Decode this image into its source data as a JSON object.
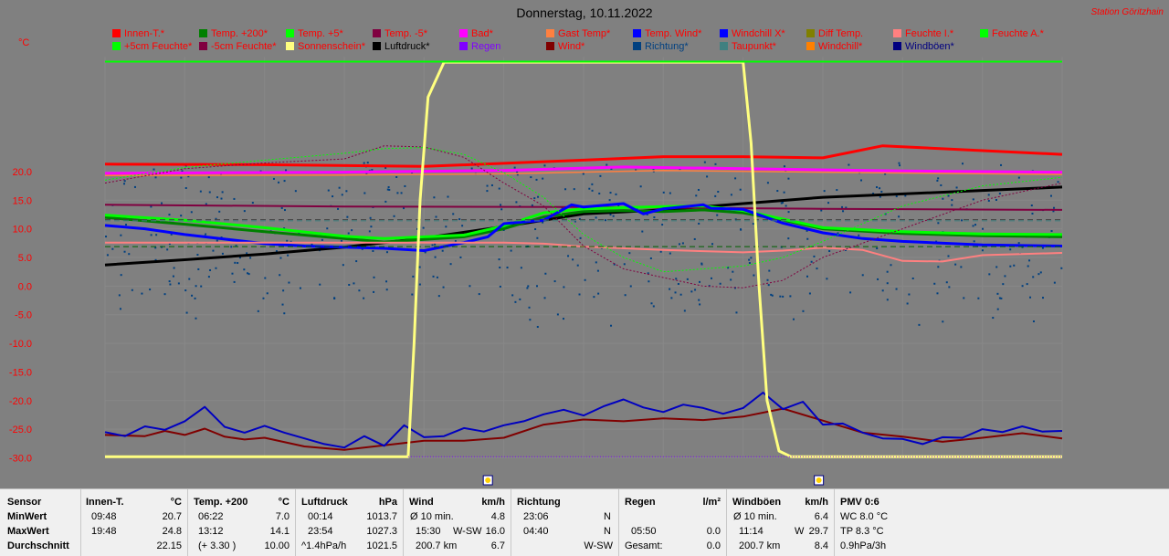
{
  "title": "Donnerstag, 10.11.2022",
  "station": "Station Göritzhain",
  "unit": "°C",
  "legend": [
    {
      "label": "Innen-T.*",
      "color": "#ff0000",
      "text": "#ff0000"
    },
    {
      "label": "Temp. +200*",
      "color": "#008000",
      "text": "#ff0000"
    },
    {
      "label": "Temp. +5*",
      "color": "#00ff00",
      "text": "#ff0000"
    },
    {
      "label": "Temp. -5*",
      "color": "#800040",
      "text": "#ff0000"
    },
    {
      "label": "Bad*",
      "color": "#ff00ff",
      "text": "#ff0000"
    },
    {
      "label": "Gast Temp*",
      "color": "#ff8040",
      "text": "#ff0000"
    },
    {
      "label": "Temp. Wind*",
      "color": "#0000ff",
      "text": "#ff0000"
    },
    {
      "label": "Windchill X*",
      "color": "#0000ff",
      "text": "#ff0000"
    },
    {
      "label": "Diff Temp.",
      "color": "#808000",
      "text": "#ff0000"
    },
    {
      "label": "Feuchte I.*",
      "color": "#ff8080",
      "text": "#ff0000"
    },
    {
      "label": "Feuchte A.*",
      "color": "#00ff00",
      "text": "#ff0000"
    },
    {
      "label": "+5cm Feuchte*",
      "color": "#00ff00",
      "text": "#ff0000"
    },
    {
      "label": "-5cm Feuchte*",
      "color": "#800040",
      "text": "#ff0000"
    },
    {
      "label": "Sonnenschein*",
      "color": "#ffff80",
      "text": "#ff0000"
    },
    {
      "label": "Luftdruck*",
      "color": "#000000",
      "text": "#000000"
    },
    {
      "label": "Regen",
      "color": "#8000ff",
      "text": "#8000ff"
    },
    {
      "label": "Wind*",
      "color": "#800000",
      "text": "#ff0000"
    },
    {
      "label": "Richtung*",
      "color": "#004080",
      "text": "#004080"
    },
    {
      "label": "Taupunkt*",
      "color": "#408080",
      "text": "#ff0000"
    },
    {
      "label": "Windchill*",
      "color": "#ff8000",
      "text": "#ff0000"
    },
    {
      "label": "Windböen*",
      "color": "#000080",
      "text": "#000080"
    }
  ],
  "chart_data": {
    "type": "line",
    "title": "Donnerstag, 10.11.2022",
    "xlabel": "",
    "ylabel": "°C",
    "x_range_hours": [
      0,
      24
    ],
    "ylim": [
      -30,
      40
    ],
    "yticks": [
      "20.0",
      "15.0",
      "10.0",
      "5.0",
      "0.0",
      "-5.0",
      "-10.0",
      "-15.0",
      "-20.0",
      "-25.0",
      "-30.0"
    ],
    "grid": true,
    "series": [
      {
        "name": "Innen-T.*",
        "color": "#ff0000",
        "width": 3,
        "x": [
          0,
          4,
          8,
          12,
          14,
          16,
          18,
          19.5,
          24
        ],
        "y": [
          21.3,
          21.2,
          20.9,
          22,
          22.6,
          22.6,
          22.4,
          24.5,
          23
        ]
      },
      {
        "name": "Bad*",
        "color": "#ff00ff",
        "width": 3,
        "x": [
          0,
          6,
          10,
          13,
          16,
          20,
          24
        ],
        "y": [
          19.7,
          19.9,
          20.2,
          20.8,
          20.5,
          20.1,
          19.9
        ]
      },
      {
        "name": "Gast Temp*",
        "color": "#ff8040",
        "width": 1.5,
        "x": [
          0,
          6,
          10,
          14,
          18,
          24
        ],
        "y": [
          19.3,
          19.4,
          19.6,
          20.2,
          19.9,
          19.5
        ]
      },
      {
        "name": "Luftdruck*",
        "color": "#000000",
        "width": 3,
        "x": [
          0,
          2,
          4,
          6,
          8,
          10,
          12,
          14,
          16,
          18,
          20,
          22,
          24
        ],
        "y": [
          3.7,
          4.6,
          5.6,
          6.8,
          8.4,
          10.4,
          12.6,
          13.3,
          14.4,
          15.5,
          16.1,
          16.7,
          17.3
        ]
      },
      {
        "name": "Temp. -5*",
        "color": "#800040",
        "width": 2,
        "x": [
          0,
          6,
          12,
          18,
          24
        ],
        "y": [
          14.2,
          13.9,
          13.8,
          13.5,
          13.3
        ]
      },
      {
        "name": "Temp. +200*",
        "color": "#008000",
        "width": 3,
        "x": [
          0,
          2,
          4,
          6,
          7,
          9,
          10,
          11,
          12,
          13,
          14,
          15,
          16,
          17,
          18,
          20,
          22,
          24
        ],
        "y": [
          12,
          10.8,
          9.5,
          8.3,
          7.7,
          8.6,
          10,
          12.1,
          13,
          13.2,
          13,
          13.3,
          12.8,
          11.5,
          10,
          9.2,
          8.8,
          8.6
        ]
      },
      {
        "name": "+5cm Feuchte*",
        "color": "#00ff00",
        "width": 3,
        "x": [
          0,
          2,
          4,
          6,
          7,
          9,
          10,
          11,
          12,
          13,
          14,
          15,
          16,
          17,
          18,
          20,
          22,
          24
        ],
        "y": [
          12.4,
          11.5,
          10.2,
          8.7,
          8.3,
          8.9,
          10.5,
          12.8,
          13.5,
          13.7,
          13.9,
          14,
          13.2,
          11.7,
          10.2,
          9.5,
          9.1,
          9
        ]
      },
      {
        "name": "Temp. Wind*",
        "color": "#0000ff",
        "width": 3,
        "x": [
          0,
          1,
          2,
          3,
          4,
          5,
          6,
          7,
          8,
          9,
          9.6,
          10,
          11,
          11.7,
          12,
          13,
          13.5,
          14,
          15,
          15.2,
          16,
          17,
          18,
          19,
          20,
          22,
          24
        ],
        "y": [
          10.6,
          10,
          9,
          8.2,
          7.4,
          7,
          6.8,
          6.6,
          6.2,
          7.6,
          8.6,
          10.9,
          11.5,
          14.2,
          13.8,
          14.4,
          12.6,
          13.5,
          14.2,
          13.6,
          13.4,
          11,
          9.3,
          8.3,
          7.8,
          7.2,
          7
        ]
      },
      {
        "name": "Feuchte I.*",
        "color": "#ff8080",
        "width": 2,
        "x": [
          0,
          4,
          7,
          10,
          11,
          12,
          14,
          16,
          17,
          18,
          19,
          20,
          21,
          22,
          24
        ],
        "y": [
          7.6,
          7.6,
          7.6,
          7.6,
          7.4,
          6.9,
          6.3,
          5.9,
          6.2,
          6.7,
          6.3,
          4.4,
          4.3,
          5.4,
          5.8
        ]
      },
      {
        "name": "Taupunkt*",
        "color": "#408080",
        "width": 1,
        "dash": "6,4",
        "x": [
          0,
          24
        ],
        "y": [
          11.4,
          11.4
        ]
      },
      {
        "name": "Diff Temp.",
        "color": "#404040",
        "width": 1,
        "dash": "6,4",
        "x": [
          0,
          24
        ],
        "y": [
          11.6,
          11.6
        ]
      },
      {
        "name": "Feuchte A.*",
        "color": "#006000",
        "width": 1,
        "dash": "6,4",
        "x": [
          0,
          24
        ],
        "y": [
          6.9,
          6.9
        ]
      },
      {
        "name": "-5cm Feuchte*",
        "color": "#800040",
        "width": 1,
        "dash": "2,2",
        "x": [
          0,
          2,
          4,
          6,
          7,
          8,
          9,
          10,
          11,
          12,
          13,
          14,
          15,
          16,
          17,
          18,
          20,
          22,
          24
        ],
        "y": [
          18,
          20.5,
          21.5,
          22.2,
          24.5,
          24.3,
          22.5,
          18,
          14,
          7,
          3,
          1.5,
          0,
          -0.3,
          1,
          5,
          10,
          15,
          18
        ]
      },
      {
        "name": "Temp. +5*",
        "color": "#00ff00",
        "width": 1,
        "dash": "2,2",
        "x": [
          0,
          2,
          4,
          6,
          7,
          8,
          9,
          10,
          11,
          12,
          13,
          14,
          15,
          16,
          17,
          18,
          20,
          22,
          24
        ],
        "y": [
          18.5,
          20.7,
          22,
          23.2,
          24,
          24.2,
          23,
          19.8,
          15.5,
          9,
          5,
          2.5,
          3,
          3.5,
          5,
          7.8,
          14,
          17.5,
          19
        ]
      },
      {
        "name": "Wind*",
        "color": "#800000",
        "width": 2,
        "x": [
          0,
          1,
          1.5,
          2,
          2.5,
          3,
          3.5,
          4,
          5,
          6,
          7,
          8,
          9,
          10,
          11,
          12,
          13,
          14,
          15,
          16,
          17,
          18,
          19,
          20,
          21,
          22,
          23,
          24
        ],
        "y": [
          -26,
          -26.2,
          -25.3,
          -26,
          -24.9,
          -26.3,
          -26.8,
          -26.5,
          -28,
          -28.6,
          -27.8,
          -27,
          -27,
          -26.5,
          -24.2,
          -23.3,
          -23.6,
          -23.1,
          -23.4,
          -22.8,
          -21.4,
          -23.5,
          -25.6,
          -26.3,
          -27.2,
          -26.5,
          -25.7,
          -26.6
        ]
      },
      {
        "name": "Windböen*",
        "color": "#0000c0",
        "width": 2,
        "x": [
          0,
          0.5,
          1,
          1.5,
          2,
          2.5,
          3,
          3.5,
          4,
          4.5,
          5,
          5.5,
          6,
          6.5,
          7,
          7.5,
          8,
          8.5,
          9,
          9.5,
          10,
          10.5,
          11,
          11.5,
          12,
          12.5,
          13,
          13.5,
          14,
          14.5,
          15,
          15.5,
          16,
          16.5,
          17,
          17.5,
          18,
          18.5,
          19,
          19.5,
          20,
          20.5,
          21,
          21.5,
          22,
          22.5,
          23,
          23.5,
          24
        ],
        "y": [
          -25.5,
          -26.2,
          -24.5,
          -25.1,
          -23.6,
          -21.1,
          -24.6,
          -25.6,
          -24.4,
          -25.6,
          -26.6,
          -27.6,
          -28.2,
          -26.2,
          -27.9,
          -24.3,
          -26.4,
          -26.2,
          -24.8,
          -25.4,
          -24.3,
          -23.6,
          -22.4,
          -21.6,
          -22.6,
          -21,
          -19.8,
          -21.2,
          -22,
          -20.7,
          -21.3,
          -22.3,
          -21.3,
          -18.6,
          -21.5,
          -20.2,
          -24.2,
          -24,
          -25.6,
          -26.6,
          -26.7,
          -27.6,
          -26.4,
          -26.5,
          -25,
          -25.5,
          -24.5,
          -25.4,
          -25.3
        ]
      },
      {
        "name": "Sonnenschein*",
        "color": "#ffff80",
        "width": 3,
        "x": [
          0,
          7.6,
          7.75,
          7.9,
          8.1,
          8.5,
          16,
          16.2,
          16.4,
          16.6,
          16.9,
          17.2,
          24
        ],
        "y": [
          -29.8,
          -29.8,
          -10,
          15,
          33,
          39.1,
          39.1,
          25,
          0,
          -20,
          -28.8,
          -29.8,
          -29.8
        ]
      },
      {
        "name": "Feuchte A.*",
        "color": "#00ff00",
        "width": 2,
        "x": [
          0,
          24
        ],
        "y": [
          39.2,
          39.2
        ]
      },
      {
        "name": "Regen",
        "color": "#8000ff",
        "width": 1,
        "dash": "1,2",
        "x": [
          7.6,
          24
        ],
        "y": [
          -29.8,
          -29.8
        ]
      }
    ],
    "scatter": {
      "name": "Richtung*",
      "color": "#004080",
      "y_band": [
        -2,
        22
      ]
    }
  },
  "markers": [
    {
      "name": "sunrise",
      "hour": 9.6
    },
    {
      "name": "sunset",
      "hour": 17.9
    }
  ],
  "table": {
    "sensor": {
      "header": "Sensor",
      "min": "MinWert",
      "max": "MaxWert",
      "avg": "Durchschnitt"
    },
    "innen": {
      "header": "Innen-T.",
      "unit": "°C",
      "min_time": "09:48",
      "min": "20.7",
      "max_time": "19:48",
      "max": "24.8",
      "avg": "22.15"
    },
    "temp200": {
      "header": "Temp. +200",
      "unit": "°C",
      "min_time": "06:22",
      "min": "7.0",
      "max_time": "13:12",
      "max": "14.1",
      "avg_note": "(+ 3.30 )",
      "avg": "10.00"
    },
    "luftdruck": {
      "header": "Luftdruck",
      "unit": "hPa",
      "min_time": "00:14",
      "min": "1013.7",
      "max_time": "23:54",
      "max": "1027.3",
      "avg_note": "^1.4hPa/h",
      "avg": "1021.5"
    },
    "wind": {
      "header": "Wind",
      "unit": "km/h",
      "min_label": "Ø 10 min.",
      "min": "4.8",
      "max_time": "15:30",
      "max_dir": "W-SW",
      "max": "16.0",
      "avg_note": "200.7 km",
      "avg": "6.7"
    },
    "richtung": {
      "header": "Richtung",
      "min_time": "23:06",
      "min": "N",
      "max_time": "04:40",
      "max": "N",
      "avg": "W-SW"
    },
    "regen": {
      "header": "Regen",
      "unit": "l/m²",
      "max_time": "05:50",
      "max": "0.0",
      "avg_note": "Gesamt:",
      "avg": "0.0"
    },
    "windboeen": {
      "header": "Windböen",
      "unit": "km/h",
      "min_label": "Ø 10 min.",
      "min": "6.4",
      "max_time": "11:14",
      "max_dir": "W",
      "max": "29.7",
      "avg_note": "200.7 km",
      "avg": "8.4"
    },
    "pmv": {
      "header": "PMV 0:6",
      "l1": "WC 8.0 °C",
      "l2": "TP 8.3 °C",
      "l3": "0.9hPa/3h"
    }
  }
}
